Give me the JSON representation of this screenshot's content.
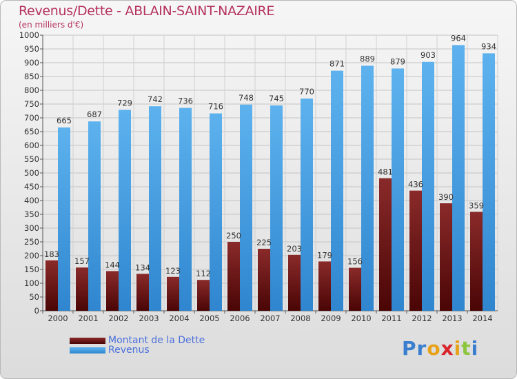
{
  "header": {
    "title": "Revenus/Dette - ABLAIN-SAINT-NAZAIRE",
    "subtitle": "(en milliers d'€)"
  },
  "colors": {
    "dette": "#7a1a1a",
    "revenus": "#4aa3e3",
    "title": "#b5325f",
    "legend_text": "#4b6fdc"
  },
  "legend": {
    "items": [
      {
        "label": "Montant de la Dette",
        "color": "#6b0d0d"
      },
      {
        "label": "Revenus",
        "color": "#4aa3e3"
      }
    ]
  },
  "logo": {
    "text": "Proxiti",
    "letter_colors": [
      "#3a7fcf",
      "#3a7fcf",
      "#e8a21a",
      "#d8252b",
      "#e8a21a",
      "#8cc63f",
      "#3a7fcf"
    ]
  },
  "chart_data": {
    "type": "bar",
    "title": "Revenus/Dette - ABLAIN-SAINT-NAZAIRE",
    "ylabel": "(en milliers d'€)",
    "xlabel": "",
    "categories": [
      "2000",
      "2001",
      "2002",
      "2003",
      "2004",
      "2005",
      "2006",
      "2007",
      "2008",
      "2009",
      "2010",
      "2011",
      "2012",
      "2013",
      "2014"
    ],
    "series": [
      {
        "name": "Montant de la Dette",
        "values": [
          183,
          157,
          144,
          134,
          123,
          112,
          250,
          225,
          203,
          179,
          156,
          481,
          436,
          390,
          359
        ]
      },
      {
        "name": "Revenus",
        "values": [
          665,
          687,
          729,
          742,
          736,
          716,
          748,
          745,
          770,
          871,
          889,
          879,
          903,
          964,
          934
        ]
      }
    ],
    "ylim": [
      0,
      1000
    ],
    "yticks": [
      0,
      50,
      100,
      150,
      200,
      250,
      300,
      350,
      400,
      450,
      500,
      550,
      600,
      650,
      700,
      750,
      800,
      850,
      900,
      950,
      1000
    ],
    "grid": true,
    "legend_position": "bottom-left"
  }
}
